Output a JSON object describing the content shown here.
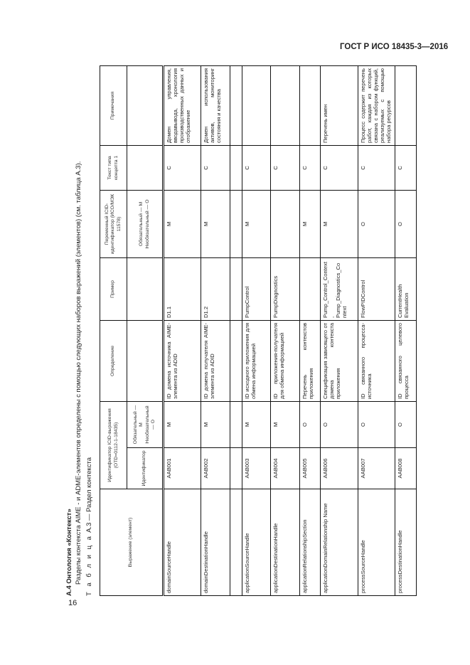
{
  "header": {
    "standard": "ГОСТ Р ИСО 18435-3—2016",
    "page_number": "16"
  },
  "section": {
    "title": "А.4 Онтология «Контекст»",
    "intro": "Разделы контекста AIME - и ADME-элементов определены с помощью следующих наборов выражений (элементов) (см. таблица А.3).",
    "caption_prefix": "Т а б л и ц а",
    "caption": "А.3 — Раздел контекста"
  },
  "table": {
    "headers": {
      "expression": "Выражение (элемент)",
      "icid_group": "Идентификатор ICID-выражения (OTD=0112-1-18435)",
      "identifier": "Идентификатор",
      "mandatory": "Обязательный — M Необязательный — O",
      "definition": "Определение",
      "example": "Пример",
      "variable": "Переменный ICID-идентификатор (ИСО/МЭК 11578)",
      "variable_sub": "Обязательный — M Необязательный — O",
      "concept_text": "Текст типа концепта 1",
      "notes": "Примечания"
    },
    "rows": [
      {
        "expression": "domainSourceHandle",
        "id": "AAB001",
        "mandatory": "M",
        "definition": "ID домена источника AIME-элемента из ADID",
        "example": "D1.1",
        "variable": "M",
        "concept_text": "C",
        "notes": "Домен управления, вводавывода, хронология производственных данных и отображение"
      },
      {
        "expression": "domainDestinationHandle",
        "id": "AAB002",
        "mandatory": "M",
        "definition": "ID домена получателя AIME-элемента из ADID",
        "example": "D1.2",
        "variable": "M",
        "concept_text": "C",
        "notes": "Домен использования активов, мониторинг состояния и качества"
      },
      {
        "expression": "",
        "id": "",
        "mandatory": "",
        "definition": "",
        "example": "",
        "variable": "",
        "concept_text": "",
        "notes": ""
      },
      {
        "expression": "applicationSourceHandle",
        "id": "AAB003",
        "mandatory": "M",
        "definition": "ID исходного приложения для обмена информацией",
        "example": "PumpControl",
        "variable": "M",
        "concept_text": "C",
        "notes": ""
      },
      {
        "expression": "applicationDestinationHandle",
        "id": "AAB004",
        "mandatory": "M",
        "definition": "ID приложения-получателя для обмена информацией",
        "example": "PumpDiagnostics",
        "variable": "",
        "concept_text": "C",
        "notes": ""
      },
      {
        "expression": "applicationRelationshipSection",
        "id": "AAB005",
        "mandatory": "O",
        "definition": "Перечень контекстов приложения",
        "example": "",
        "variable": "M",
        "concept_text": "C",
        "notes": ""
      },
      {
        "expression": "applicationDomainRelationship Name",
        "id": "AAB006",
        "mandatory": "O",
        "definition": "Спецификация зависящего от домена контекста приложения",
        "example": "Pump_Control_Context, Pump_Diagnostics_Context",
        "variable": "M",
        "concept_text": "C",
        "notes": "Перечень имен"
      },
      {
        "expression": "processSourceHandle",
        "id": "AAB007",
        "mandatory": "O",
        "definition": "ID связанного процесса-источника",
        "example": "FlowPIDControl",
        "variable": "O",
        "concept_text": "C",
        "notes": "Процесс содержит перечень работ, каждая из которых связана с набором функций, реализуемых с помощью набора ресурсов"
      },
      {
        "expression": "processDestinationHandle",
        "id": "AAB008",
        "mandatory": "O",
        "definition": "ID связанного целевого процесса",
        "example": "CurrentHealth Evaluation",
        "variable": "O",
        "concept_text": "C",
        "notes": ""
      }
    ]
  }
}
